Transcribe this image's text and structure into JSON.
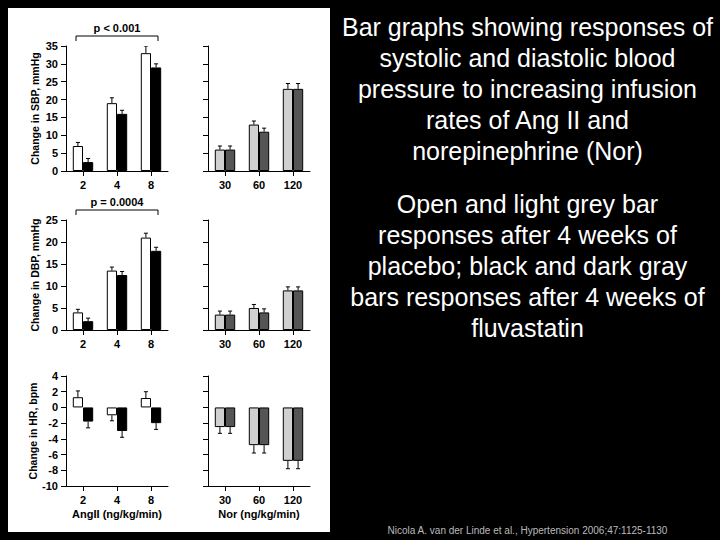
{
  "chart_data": [
    {
      "type": "bar",
      "categories": [
        "2",
        "4",
        "8"
      ],
      "y_label": "Change in SBP, mmHg",
      "ylim": [
        0,
        35
      ],
      "yticks": [
        0,
        5,
        10,
        15,
        20,
        25,
        30,
        35
      ],
      "grid": false,
      "annotations": [
        "p < 0.001"
      ],
      "series": [
        {
          "color": "#ffffff",
          "values": [
            7,
            19,
            33
          ],
          "errors": [
            1,
            1.5,
            2
          ]
        },
        {
          "color": "#000000",
          "values": [
            2.5,
            16,
            29
          ],
          "errors": [
            1,
            1,
            1
          ]
        }
      ]
    },
    {
      "type": "bar",
      "categories": [
        "30",
        "60",
        "120"
      ],
      "ylim": [
        0,
        35
      ],
      "yticks": [
        0,
        5,
        10,
        15,
        20,
        25,
        30,
        35
      ],
      "grid": false,
      "tick_labels": "x",
      "series": [
        {
          "color": "#d0d0d0",
          "values": [
            6,
            13,
            23
          ],
          "errors": [
            1,
            1,
            1.5
          ]
        },
        {
          "color": "#555555",
          "values": [
            6,
            11,
            23
          ],
          "errors": [
            1,
            1,
            1.5
          ]
        }
      ]
    },
    {
      "type": "bar",
      "categories": [
        "2",
        "4",
        "8"
      ],
      "y_label": "Change in DBP, mmHg",
      "ylim": [
        0,
        25
      ],
      "yticks": [
        0,
        5,
        10,
        15,
        20,
        25
      ],
      "grid": false,
      "annotations": [
        "p = 0.0004"
      ],
      "series": [
        {
          "color": "#ffffff",
          "values": [
            4,
            13.5,
            21
          ],
          "errors": [
            0.7,
            0.8,
            1
          ]
        },
        {
          "color": "#000000",
          "values": [
            2,
            12.5,
            18
          ],
          "errors": [
            0.7,
            0.8,
            0.8
          ]
        }
      ]
    },
    {
      "type": "bar",
      "categories": [
        "30",
        "60",
        "120"
      ],
      "ylim": [
        0,
        25
      ],
      "yticks": [
        0,
        5,
        10,
        15,
        20,
        25
      ],
      "grid": false,
      "tick_labels": "x",
      "series": [
        {
          "color": "#d0d0d0",
          "values": [
            3.5,
            5,
            9
          ],
          "errors": [
            0.8,
            0.8,
            0.8
          ]
        },
        {
          "color": "#555555",
          "values": [
            3.5,
            4,
            9
          ],
          "errors": [
            0.8,
            0.8,
            0.8
          ]
        }
      ]
    },
    {
      "type": "bar",
      "categories": [
        "2",
        "4",
        "8"
      ],
      "y_label": "Change in HR, bpm",
      "x_label": "AngII (ng/kg/min)",
      "ylim": [
        -10,
        4
      ],
      "yticks": [
        -10,
        -8,
        -6,
        -4,
        -2,
        0,
        2,
        4
      ],
      "grid": false,
      "series": [
        {
          "color": "#ffffff",
          "values": [
            1.3,
            -1,
            1.2
          ],
          "errors": [
            0.8,
            0.7,
            0.8
          ]
        },
        {
          "color": "#000000",
          "values": [
            -1.8,
            -3,
            -2
          ],
          "errors": [
            0.8,
            0.8,
            0.8
          ]
        }
      ]
    },
    {
      "type": "bar",
      "categories": [
        "30",
        "60",
        "120"
      ],
      "x_label": "Nor (ng/kg/min)",
      "ylim": [
        -10,
        4
      ],
      "yticks": [
        -10,
        -8,
        -6,
        -4,
        -2,
        0,
        2,
        4
      ],
      "grid": false,
      "tick_labels": "x",
      "series": [
        {
          "color": "#d0d0d0",
          "values": [
            -2.5,
            -4.8,
            -6.8
          ],
          "errors": [
            0.8,
            1,
            1
          ]
        },
        {
          "color": "#555555",
          "values": [
            -2.5,
            -4.8,
            -6.8
          ],
          "errors": [
            0.8,
            1,
            1
          ]
        }
      ]
    }
  ],
  "slide": {
    "caption": "Bar graphs showing responses of systolic and diastolic blood pressure to increasing infusion rates of Ang II and norepinephrine (Nor)",
    "note": "Open and light grey bar responses after 4 weeks of placebo; black and dark gray bars responses after 4 weeks of fluvastatin",
    "citation": "Nicola A. van der Linde et al., Hypertension 2006;47:1125-1130"
  }
}
